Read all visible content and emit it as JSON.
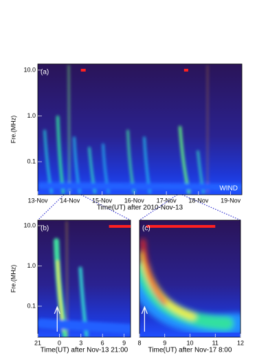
{
  "chart_data": [
    {
      "type": "spectrogram",
      "panel_label": "(a)",
      "instrument": "WIND",
      "xlabel": "Time(UT) after 2010-Nov-13",
      "ylabel": "Fre.(MHz)",
      "xlim": [
        13,
        19.35
      ],
      "xticks": [
        {
          "value": 13,
          "label": "13-Nov"
        },
        {
          "value": 14,
          "label": "14-Nov"
        },
        {
          "value": 15,
          "label": "15-Nov"
        },
        {
          "value": 16,
          "label": "16-Nov"
        },
        {
          "value": 17,
          "label": "17-Nov"
        },
        {
          "value": 18,
          "label": "18-Nov"
        },
        {
          "value": 19,
          "label": "19-Nov"
        }
      ],
      "ylim": [
        0.019,
        13.6
      ],
      "ylog": true,
      "yticks": [
        {
          "value": 10,
          "label": "10.0"
        },
        {
          "value": 1,
          "label": "1.0"
        },
        0.1
      ],
      "red_bars": [
        [
          14.34,
          14.49
        ],
        [
          17.55,
          17.68
        ]
      ],
      "color": "#ff2020"
    },
    {
      "type": "spectrogram",
      "panel_label": "(b)",
      "xlabel": "Time(UT) after Nov-13 21:00",
      "ylabel": "Fre.(MHz)",
      "xlim": [
        0,
        12.9
      ],
      "xticks": [
        {
          "value": 0,
          "label": "21"
        },
        {
          "value": 3,
          "label": "0"
        },
        {
          "value": 6,
          "label": "3"
        },
        {
          "value": 9,
          "label": "6"
        },
        {
          "value": 12,
          "label": "9"
        }
      ],
      "ylim": [
        0.017,
        13.7
      ],
      "ylog": true,
      "yticks": [
        {
          "value": 10,
          "label": "10.0"
        },
        {
          "value": 1,
          "label": "1.0"
        },
        0.1
      ],
      "red_bars": [
        [
          9.9,
          12.9
        ]
      ],
      "arrows": [
        2.7
      ],
      "color": "#ff2020"
    },
    {
      "type": "spectrogram",
      "panel_label": "(c)",
      "xlabel": "Time(UT) after Nov-17 8:00",
      "xlim": [
        8,
        12
      ],
      "xticks": [
        8,
        9,
        10,
        11,
        12
      ],
      "ylim": [
        0.017,
        13.7
      ],
      "ylog": true,
      "red_bars": [
        [
          8.27,
          11
        ]
      ],
      "arrows": [
        8.2
      ],
      "color": "#ff2020"
    }
  ]
}
